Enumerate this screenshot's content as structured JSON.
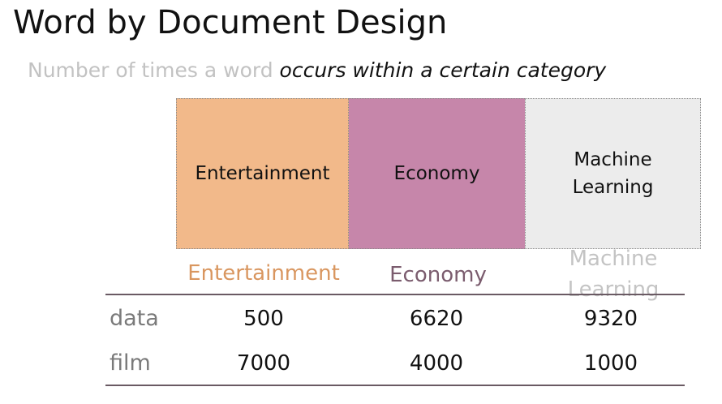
{
  "title": "Word by Document Design",
  "subtitle": {
    "muted": "Number of times a word ",
    "emphasis": "occurs within a certain category"
  },
  "category_boxes": [
    {
      "label": "Entertainment",
      "color": "#f2b98a"
    },
    {
      "label": "Economy",
      "color": "#c686aa"
    },
    {
      "label": "Machine Learning",
      "color": "#ececec"
    }
  ],
  "table": {
    "columns": [
      "Entertainment",
      "Economy",
      "Machine Learning"
    ],
    "column_colors": [
      "#d9965f",
      "#7b5c6e",
      "#c4c4c4"
    ],
    "rows": [
      {
        "label": "data",
        "values": [
          "500",
          "6620",
          "9320"
        ]
      },
      {
        "label": "film",
        "values": [
          "7000",
          "4000",
          "1000"
        ]
      }
    ]
  }
}
